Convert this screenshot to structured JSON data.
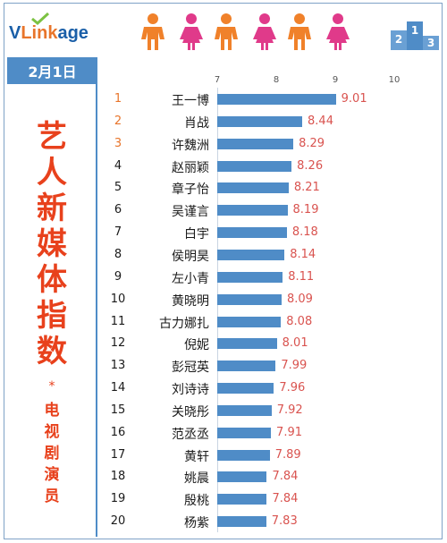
{
  "brand": {
    "v": "V",
    "link": "Link",
    "age": "age"
  },
  "date": "2月1日",
  "title_chars": [
    "艺",
    "人",
    "新",
    "媒",
    "体",
    "指",
    "数"
  ],
  "note_mark": "*",
  "subtitle_chars": [
    "电",
    "视",
    "剧",
    "演",
    "员"
  ],
  "colors": {
    "accent": "#4f8cc7",
    "title": "#e8411c",
    "value": "#d9534f",
    "rank_top": "#e8752b"
  },
  "chart_data": {
    "type": "bar",
    "orientation": "horizontal",
    "xlim": [
      7,
      10
    ],
    "ticks": [
      "7",
      "8",
      "9",
      "10"
    ],
    "ranks": [
      "1",
      "2",
      "3",
      "4",
      "5",
      "6",
      "7",
      "8",
      "9",
      "10",
      "11",
      "12",
      "13",
      "14",
      "15",
      "16",
      "17",
      "18",
      "19",
      "20"
    ],
    "categories": [
      "王一博",
      "肖战",
      "许魏洲",
      "赵丽颖",
      "章子怡",
      "吴谨言",
      "白宇",
      "侯明昊",
      "左小青",
      "黄晓明",
      "古力娜扎",
      "倪妮",
      "彭冠英",
      "刘诗诗",
      "关晓彤",
      "范丞丞",
      "黄轩",
      "姚晨",
      "殷桃",
      "杨紫"
    ],
    "values": [
      9.01,
      8.44,
      8.29,
      8.26,
      8.21,
      8.19,
      8.18,
      8.14,
      8.11,
      8.09,
      8.08,
      8.01,
      7.99,
      7.96,
      7.92,
      7.91,
      7.89,
      7.84,
      7.84,
      7.83
    ],
    "labels": [
      "9.01",
      "8.44",
      "8.29",
      "8.26",
      "8.21",
      "8.19",
      "8.18",
      "8.14",
      "8.11",
      "8.09",
      "8.08",
      "8.01",
      "7.99",
      "7.96",
      "7.92",
      "7.91",
      "7.89",
      "7.84",
      "7.84",
      "7.83"
    ]
  }
}
